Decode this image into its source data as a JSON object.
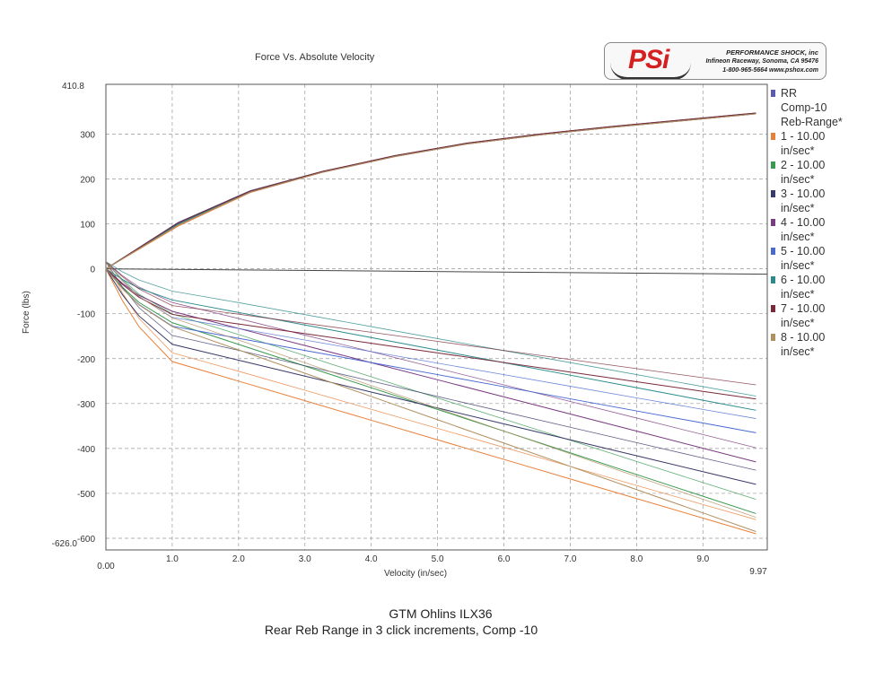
{
  "chart_data": {
    "type": "line",
    "title": "Force Vs. Absolute Velocity",
    "xlabel": "Velocity (in/sec)",
    "ylabel": "Force (lbs)",
    "xlim": [
      0,
      9.97
    ],
    "ylim": [
      -626.0,
      410.8
    ],
    "x_min_label": "0.00",
    "x_max_label": "9.97",
    "y_max_label": "410.8",
    "y_min_label": "-626.0",
    "x_ticks": [
      "1.0",
      "2.0",
      "3.0",
      "4.0",
      "5.0",
      "6.0",
      "7.0",
      "8.0",
      "9.0"
    ],
    "y_ticks": [
      "300",
      "200",
      "100",
      "0",
      "-100",
      "-200",
      "-300",
      "-400",
      "-500",
      "-600"
    ],
    "grid": true,
    "legend_position": "right",
    "series": [
      {
        "name": "1 - 10.00 in/sec*",
        "color": "#e8803a",
        "comp": [
          0,
          95,
          170,
          215,
          250,
          278,
          298,
          315,
          330,
          345
        ],
        "reb_end": -590
      },
      {
        "name": "2 - 10.00 in/sec*",
        "color": "#3a9a50",
        "comp": [
          0,
          100,
          172,
          216,
          251,
          279,
          299,
          316,
          331,
          346
        ],
        "reb_end": -545
      },
      {
        "name": "3 - 10.00 in/sec*",
        "color": "#3a3a6a",
        "comp": [
          0,
          103,
          174,
          217,
          252,
          280,
          300,
          317,
          332,
          347
        ],
        "reb_end": -480
      },
      {
        "name": "4 - 10.00 in/sec*",
        "color": "#7a3a80",
        "comp": [
          0,
          98,
          171,
          215,
          250,
          278,
          298,
          315,
          330,
          345
        ],
        "reb_end": -430
      },
      {
        "name": "5 - 10.00 in/sec*",
        "color": "#4a6ad0",
        "comp": [
          0,
          101,
          173,
          216,
          251,
          279,
          299,
          316,
          331,
          346
        ],
        "reb_end": -365
      },
      {
        "name": "6 - 10.00 in/sec*",
        "color": "#2a8a8a",
        "comp": [
          0,
          99,
          172,
          216,
          251,
          279,
          299,
          316,
          331,
          346
        ],
        "reb_end": -315
      },
      {
        "name": "7 - 10.00 in/sec*",
        "color": "#7a2a3a",
        "comp": [
          0,
          102,
          173,
          217,
          252,
          280,
          300,
          317,
          332,
          347
        ],
        "reb_end": -290
      },
      {
        "name": "8 - 10.00 in/sec*",
        "color": "#b09060",
        "comp": [
          0,
          97,
          171,
          215,
          250,
          278,
          298,
          315,
          330,
          345
        ],
        "reb_end": -585
      }
    ]
  },
  "legend": {
    "header_lines": [
      "RR",
      "Comp-10",
      "Reb-Range*"
    ],
    "header_color": "#5a5ab0",
    "entries": [
      {
        "label": "1 - 10.00 in/sec*",
        "color": "#e8803a"
      },
      {
        "label": "2 - 10.00 in/sec*",
        "color": "#3a9a50"
      },
      {
        "label": "3 - 10.00 in/sec*",
        "color": "#3a3a6a"
      },
      {
        "label": "4 - 10.00 in/sec*",
        "color": "#7a3a80"
      },
      {
        "label": "5 - 10.00 in/sec*",
        "color": "#4a6ad0"
      },
      {
        "label": "6 - 10.00 in/sec*",
        "color": "#2a8a8a"
      },
      {
        "label": "7 - 10.00 in/sec*",
        "color": "#7a2a3a"
      },
      {
        "label": "8 - 10.00 in/sec*",
        "color": "#b09060"
      }
    ]
  },
  "logo": {
    "mark": "PSi",
    "company": "PERFORMANCE SHOCK, inc",
    "address": "Infineon Raceway, Sonoma, CA 95476",
    "contact": "1-800-965-5664    www.pshox.com"
  },
  "footer": {
    "line1": "GTM Ohlins ILX36",
    "line2": "Rear Reb Range in 3 click increments, Comp -10"
  }
}
